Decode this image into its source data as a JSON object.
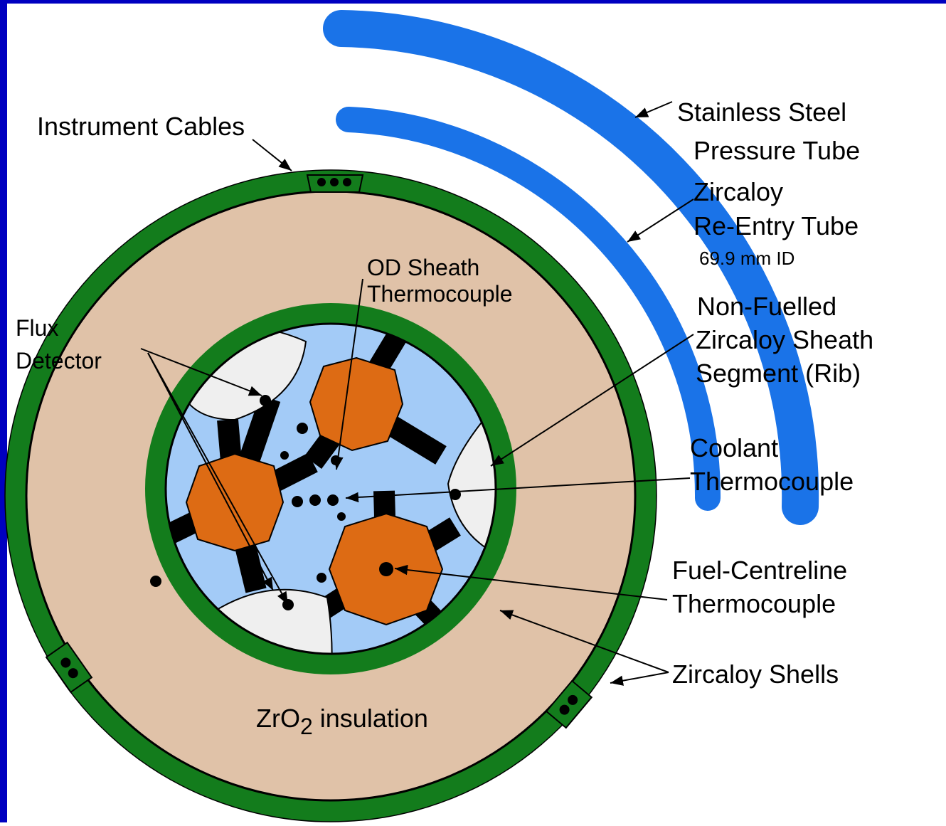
{
  "labels": {
    "instrument_cables": "Instrument Cables",
    "pressure_tube": [
      "Stainless Steel",
      "Pressure Tube"
    ],
    "reentry_tube": [
      "Zircaloy",
      "Re-Entry Tube",
      "69.9 mm ID"
    ],
    "od_sheath": [
      "OD Sheath",
      "Thermocouple"
    ],
    "flux_detector": [
      "Flux",
      "Detector"
    ],
    "rib": [
      "Non-Fuelled",
      "Zircaloy Sheath",
      "Segment (Rib)"
    ],
    "coolant": [
      "Coolant",
      "Thermocouple"
    ],
    "fuel_centreline": [
      "Fuel-Centreline",
      "Thermocouple"
    ],
    "shells": "Zircaloy Shells",
    "insulation": {
      "prefix": "ZrO",
      "sub": "2",
      "rest": " insulation"
    }
  }
}
